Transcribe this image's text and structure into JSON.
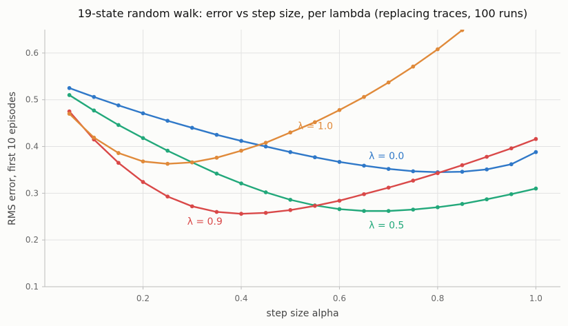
{
  "chart_data": {
    "type": "line",
    "title": "19-state random walk: error vs step size, per lambda (replacing traces, 100 runs)",
    "xlabel": "step size alpha",
    "ylabel": "RMS error, first 10 episodes",
    "xlim": [
      0.0,
      1.05
    ],
    "ylim": [
      0.1,
      0.65
    ],
    "x_ticks": [
      0.2,
      0.4,
      0.6,
      0.8,
      1.0
    ],
    "x_tick_labels": [
      "0.2",
      "0.4",
      "0.6",
      "0.8",
      "1.0"
    ],
    "y_ticks": [
      0.1,
      0.2,
      0.3,
      0.4,
      0.5,
      0.6
    ],
    "y_tick_labels": [
      "0.1",
      "0.2",
      "0.3",
      "0.4",
      "0.5",
      "0.6"
    ],
    "grid": true,
    "legend": "none",
    "series": [
      {
        "name": "λ = 0.0",
        "color": "#2f78c8",
        "label_at": [
          0.66,
          0.38
        ],
        "x": [
          0.05,
          0.1,
          0.15,
          0.2,
          0.25,
          0.3,
          0.35,
          0.4,
          0.45,
          0.5,
          0.55,
          0.6,
          0.65,
          0.7,
          0.75,
          0.8,
          0.85,
          0.9,
          0.95,
          1.0
        ],
        "y": [
          0.525,
          0.506,
          0.488,
          0.471,
          0.455,
          0.44,
          0.425,
          0.412,
          0.4,
          0.388,
          0.377,
          0.367,
          0.359,
          0.352,
          0.347,
          0.345,
          0.346,
          0.351,
          0.362,
          0.388
        ]
      },
      {
        "name": "λ = 0.5",
        "color": "#22a87a",
        "label_at": [
          0.66,
          0.232
        ],
        "x": [
          0.05,
          0.1,
          0.15,
          0.2,
          0.25,
          0.3,
          0.35,
          0.4,
          0.45,
          0.5,
          0.55,
          0.6,
          0.65,
          0.7,
          0.75,
          0.8,
          0.85,
          0.9,
          0.95,
          1.0
        ],
        "y": [
          0.51,
          0.477,
          0.446,
          0.418,
          0.391,
          0.366,
          0.342,
          0.321,
          0.302,
          0.286,
          0.274,
          0.266,
          0.262,
          0.262,
          0.265,
          0.27,
          0.277,
          0.287,
          0.298,
          0.31
        ]
      },
      {
        "name": "λ = 0.9",
        "color": "#d94848",
        "label_at": [
          0.29,
          0.24
        ],
        "x": [
          0.05,
          0.1,
          0.15,
          0.2,
          0.25,
          0.3,
          0.35,
          0.4,
          0.45,
          0.5,
          0.55,
          0.6,
          0.65,
          0.7,
          0.75,
          0.8,
          0.85,
          0.9,
          0.95,
          1.0
        ],
        "y": [
          0.475,
          0.415,
          0.365,
          0.324,
          0.293,
          0.272,
          0.26,
          0.256,
          0.258,
          0.264,
          0.273,
          0.284,
          0.298,
          0.312,
          0.327,
          0.343,
          0.36,
          0.378,
          0.396,
          0.416
        ]
      },
      {
        "name": "λ = 1.0",
        "color": "#e08a3a",
        "label_at": [
          0.515,
          0.444
        ],
        "x": [
          0.05,
          0.1,
          0.15,
          0.2,
          0.25,
          0.3,
          0.35,
          0.4,
          0.45,
          0.5,
          0.55,
          0.6,
          0.65,
          0.7,
          0.75,
          0.8,
          0.85
        ],
        "y": [
          0.47,
          0.419,
          0.386,
          0.368,
          0.363,
          0.366,
          0.376,
          0.391,
          0.408,
          0.43,
          0.452,
          0.478,
          0.506,
          0.537,
          0.571,
          0.608,
          0.649
        ]
      }
    ]
  }
}
